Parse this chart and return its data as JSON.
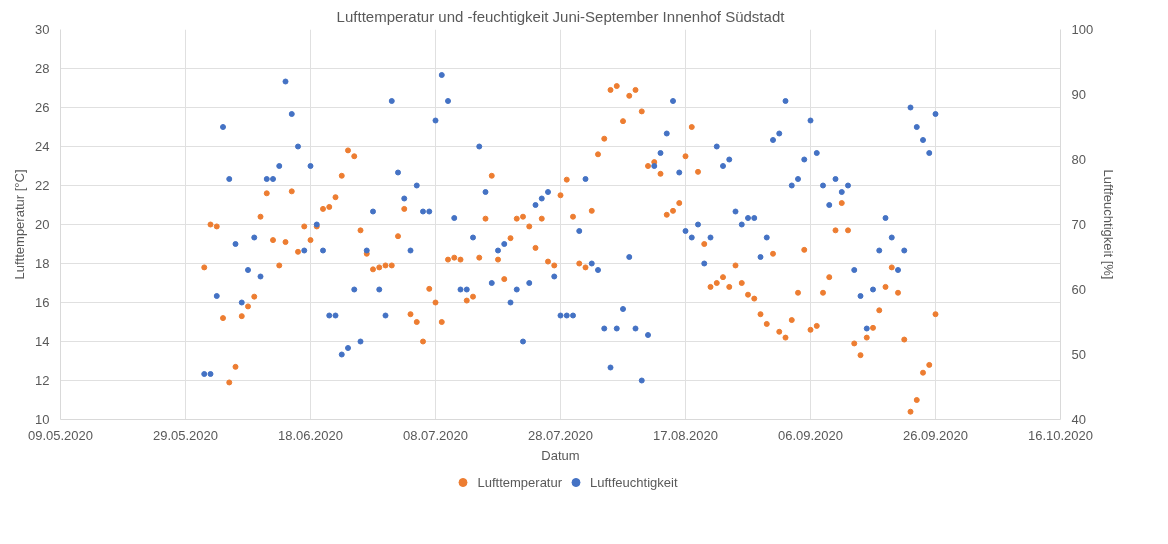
{
  "chart_data": {
    "type": "scatter",
    "title": "Lufttemperatur und -feuchtigkeit Juni-September Innenhof Südstadt",
    "xlabel": "Datum",
    "ylabel": "Lufttemperatur [°C]",
    "y2label": "Luftfeuchtigkeit [%]",
    "x": [
      "2020-06-01",
      "2020-06-02",
      "2020-06-03",
      "2020-06-04",
      "2020-06-05",
      "2020-06-06",
      "2020-06-07",
      "2020-06-08",
      "2020-06-09",
      "2020-06-10",
      "2020-06-11",
      "2020-06-12",
      "2020-06-13",
      "2020-06-14",
      "2020-06-15",
      "2020-06-16",
      "2020-06-17",
      "2020-06-18",
      "2020-06-19",
      "2020-06-20",
      "2020-06-21",
      "2020-06-22",
      "2020-06-23",
      "2020-06-24",
      "2020-06-25",
      "2020-06-26",
      "2020-06-27",
      "2020-06-28",
      "2020-06-29",
      "2020-06-30",
      "2020-07-01",
      "2020-07-02",
      "2020-07-03",
      "2020-07-04",
      "2020-07-05",
      "2020-07-06",
      "2020-07-07",
      "2020-07-08",
      "2020-07-09",
      "2020-07-10",
      "2020-07-11",
      "2020-07-12",
      "2020-07-13",
      "2020-07-14",
      "2020-07-15",
      "2020-07-16",
      "2020-07-17",
      "2020-07-18",
      "2020-07-19",
      "2020-07-20",
      "2020-07-21",
      "2020-07-22",
      "2020-07-23",
      "2020-07-24",
      "2020-07-25",
      "2020-07-26",
      "2020-07-27",
      "2020-07-28",
      "2020-07-29",
      "2020-07-30",
      "2020-07-31",
      "2020-08-01",
      "2020-08-02",
      "2020-08-03",
      "2020-08-04",
      "2020-08-05",
      "2020-08-06",
      "2020-08-07",
      "2020-08-08",
      "2020-08-09",
      "2020-08-10",
      "2020-08-11",
      "2020-08-12",
      "2020-08-13",
      "2020-08-14",
      "2020-08-15",
      "2020-08-16",
      "2020-08-17",
      "2020-08-18",
      "2020-08-19",
      "2020-08-20",
      "2020-08-21",
      "2020-08-22",
      "2020-08-23",
      "2020-08-24",
      "2020-08-25",
      "2020-08-26",
      "2020-08-27",
      "2020-08-28",
      "2020-08-29",
      "2020-08-30",
      "2020-08-31",
      "2020-09-01",
      "2020-09-02",
      "2020-09-03",
      "2020-09-04",
      "2020-09-05",
      "2020-09-06",
      "2020-09-07",
      "2020-09-08",
      "2020-09-09",
      "2020-09-10",
      "2020-09-11",
      "2020-09-12",
      "2020-09-13",
      "2020-09-14",
      "2020-09-15",
      "2020-09-16",
      "2020-09-17",
      "2020-09-18",
      "2020-09-19",
      "2020-09-20",
      "2020-09-21",
      "2020-09-22",
      "2020-09-23",
      "2020-09-24",
      "2020-09-25",
      "2020-09-26"
    ],
    "series": [
      {
        "name": "Lufttemperatur",
        "color": "#ed7d31",
        "values": [
          17.8,
          20.0,
          19.9,
          15.2,
          11.9,
          12.7,
          15.3,
          15.8,
          16.3,
          20.4,
          21.6,
          19.2,
          17.9,
          19.1,
          21.7,
          18.6,
          19.9,
          19.2,
          19.9,
          20.8,
          20.9,
          21.4,
          22.5,
          23.8,
          23.5,
          19.7,
          18.5,
          17.7,
          17.8,
          17.9,
          17.9,
          19.4,
          20.8,
          15.4,
          15.0,
          14.0,
          16.7,
          16.0,
          15.0,
          18.2,
          18.3,
          18.2,
          16.1,
          16.3,
          18.3,
          20.3,
          22.5,
          18.2,
          17.2,
          19.3,
          20.3,
          20.4,
          19.9,
          18.8,
          20.3,
          18.1,
          17.9,
          21.5,
          22.3,
          20.4,
          18.0,
          17.8,
          20.7,
          23.6,
          24.4,
          26.9,
          27.1,
          25.3,
          26.6,
          26.9,
          25.8,
          23.0,
          23.2,
          22.6,
          20.5,
          20.7,
          21.1,
          23.5,
          25.0,
          22.7,
          19.0,
          16.8,
          17.0,
          17.3,
          16.8,
          17.9,
          17.0,
          16.4,
          16.2,
          15.4,
          14.9,
          18.5,
          14.5,
          14.2,
          15.1,
          16.5,
          18.7,
          14.6,
          14.8,
          16.5,
          17.3,
          19.7,
          21.1,
          19.7,
          13.9,
          13.3,
          14.2,
          14.7,
          15.6,
          16.8,
          17.8,
          16.5,
          14.1,
          10.4,
          11.0,
          12.4,
          12.8,
          15.4
        ]
      },
      {
        "name": "Luftfeuchtigkeit",
        "color": "#4472c4",
        "axis": "y2",
        "values": [
          47,
          47,
          59,
          85,
          77,
          67,
          58,
          63,
          68,
          62,
          77,
          77,
          79,
          92,
          87,
          82,
          66,
          79,
          70,
          66,
          56,
          56,
          50,
          51,
          60,
          52,
          66,
          72,
          60,
          56,
          89,
          78,
          74,
          66,
          76,
          72,
          72,
          86,
          93,
          89,
          71,
          60,
          60,
          68,
          82,
          75,
          61,
          66,
          67,
          58,
          60,
          52,
          61,
          73,
          74,
          75,
          62,
          56,
          56,
          56,
          69,
          77,
          64,
          63,
          54,
          48,
          54,
          57,
          65,
          54,
          46,
          53,
          79,
          81,
          84,
          89,
          78,
          69,
          68,
          70,
          64,
          68,
          82,
          79,
          80,
          72,
          70,
          71,
          71,
          65,
          68,
          83,
          84,
          89,
          76,
          77,
          80,
          86,
          81,
          76,
          73,
          77,
          75,
          76,
          63,
          59,
          54,
          60,
          66,
          71,
          68,
          63,
          66,
          88,
          85,
          83,
          81,
          87
        ]
      }
    ],
    "xlim": [
      "2020-05-09",
      "2020-10-16"
    ],
    "xticks": [
      {
        "value": "2020-05-09",
        "label": "09.05.2020"
      },
      {
        "value": "2020-05-29",
        "label": "29.05.2020"
      },
      {
        "value": "2020-06-18",
        "label": "18.06.2020"
      },
      {
        "value": "2020-07-08",
        "label": "08.07.2020"
      },
      {
        "value": "2020-07-28",
        "label": "28.07.2020"
      },
      {
        "value": "2020-08-17",
        "label": "17.08.2020"
      },
      {
        "value": "2020-09-06",
        "label": "06.09.2020"
      },
      {
        "value": "2020-09-26",
        "label": "26.09.2020"
      },
      {
        "value": "2020-10-16",
        "label": "16.10.2020"
      }
    ],
    "ylim": [
      10,
      30
    ],
    "yticks": [
      10,
      12,
      14,
      16,
      18,
      20,
      22,
      24,
      26,
      28,
      30
    ],
    "y2lim": [
      40,
      100
    ],
    "y2ticks": [
      40,
      50,
      60,
      70,
      80,
      90,
      100
    ],
    "grid": true,
    "legend": "bottom",
    "marker": "circle"
  }
}
